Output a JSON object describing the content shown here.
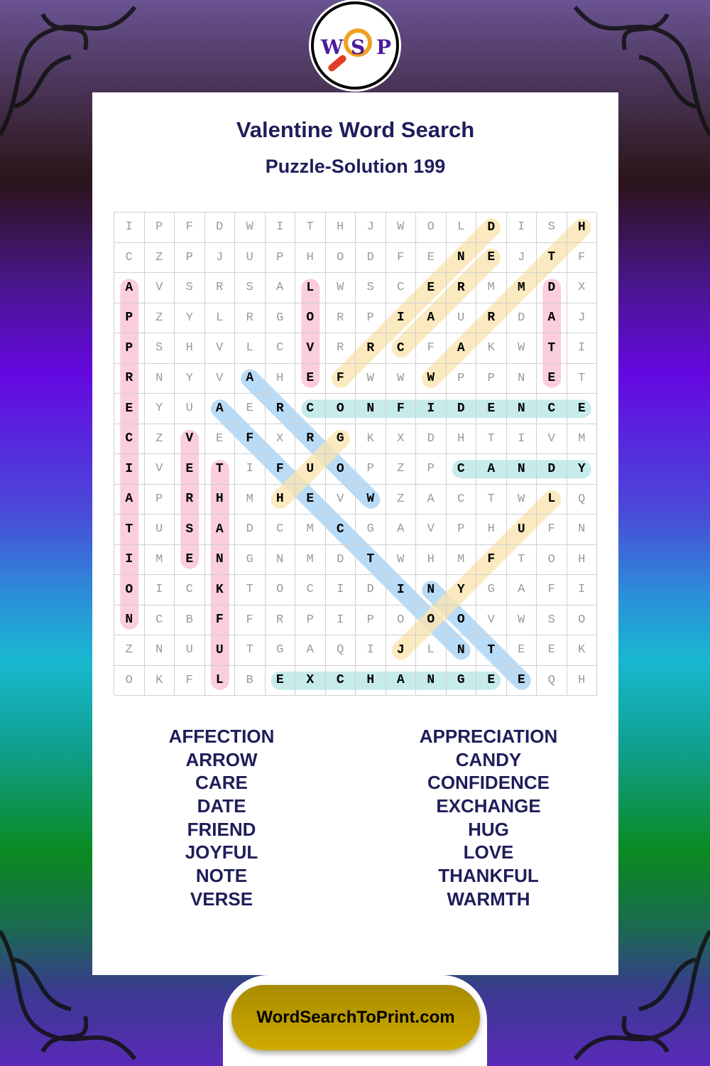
{
  "logo": {
    "letters": [
      "W",
      "S",
      "P"
    ]
  },
  "header": {
    "title": "Valentine Word Search",
    "subtitle": "Puzzle-Solution 199"
  },
  "grid": {
    "rows": [
      "IPFDWITHJWOLDISH",
      "CZPJUPHODFENEJTF",
      "AVSRSALWSCERMMDX",
      "PZYLRGORPIAURDAJ",
      "PSHVLCVRRCFAKWTI",
      "RNYVAHEFWWWPPNET",
      "EYUAERCONFIDENCE",
      "CZVEFXRGKXDHTIVM",
      "IVETIFUOPZPCANDY",
      "APRHMHEVWZACTWLQ",
      "TUSADCMCGAVPHUFN",
      "IMENGNMDTWHMFTOH",
      "OICKTOCIDINYGAFI",
      "NCBFFRPIPOOOVWSO",
      "ZNUUTGAQIJLNTEEK",
      "OKFLBEXCHANGEEQH"
    ]
  },
  "colors": {
    "pink": "#f9c3d1",
    "teal": "#b9e7e6",
    "blue": "#a9d3f3",
    "yellow": "#fbe5b0",
    "text": "#1e1e5a",
    "footer": "#c4a000"
  },
  "solutions": [
    {
      "word": "APPRECIATION",
      "start": [
        2,
        0
      ],
      "end": [
        13,
        0
      ],
      "color": "pink"
    },
    {
      "word": "LOVE",
      "start": [
        2,
        6
      ],
      "end": [
        5,
        6
      ],
      "color": "pink"
    },
    {
      "word": "DATE",
      "start": [
        2,
        14
      ],
      "end": [
        5,
        14
      ],
      "color": "pink"
    },
    {
      "word": "VERSE",
      "start": [
        7,
        2
      ],
      "end": [
        11,
        2
      ],
      "color": "pink"
    },
    {
      "word": "THANKFUL",
      "start": [
        8,
        3
      ],
      "end": [
        15,
        3
      ],
      "color": "pink"
    },
    {
      "word": "CONFIDENCE",
      "start": [
        6,
        6
      ],
      "end": [
        6,
        15
      ],
      "color": "teal"
    },
    {
      "word": "CANDY",
      "start": [
        8,
        11
      ],
      "end": [
        8,
        15
      ],
      "color": "teal"
    },
    {
      "word": "EXCHANGE",
      "start": [
        15,
        5
      ],
      "end": [
        15,
        12
      ],
      "color": "teal"
    },
    {
      "word": "ARROW",
      "start": [
        5,
        4
      ],
      "end": [
        9,
        8
      ],
      "color": "blue"
    },
    {
      "word": "AFFECTION",
      "start": [
        6,
        3
      ],
      "end": [
        14,
        11
      ],
      "color": "blue"
    },
    {
      "word": "NOTE",
      "start": [
        12,
        10
      ],
      "end": [
        15,
        13
      ],
      "color": "blue"
    },
    {
      "word": "FRIEND",
      "start": [
        5,
        7
      ],
      "end": [
        0,
        12
      ],
      "color": "yellow"
    },
    {
      "word": "CARE",
      "start": [
        4,
        9
      ],
      "end": [
        1,
        12
      ],
      "color": "yellow"
    },
    {
      "word": "WARMTH",
      "start": [
        5,
        10
      ],
      "end": [
        0,
        15
      ],
      "color": "yellow"
    },
    {
      "word": "HUG",
      "start": [
        9,
        5
      ],
      "end": [
        7,
        7
      ],
      "color": "yellow"
    },
    {
      "word": "JOYFUL",
      "start": [
        14,
        9
      ],
      "end": [
        9,
        14
      ],
      "color": "yellow"
    }
  ],
  "word_list": {
    "left": [
      "AFFECTION",
      "ARROW",
      "CARE",
      "DATE",
      "FRIEND",
      "JOYFUL",
      "NOTE",
      "VERSE"
    ],
    "right": [
      "APPRECIATION",
      "CANDY",
      "CONFIDENCE",
      "EXCHANGE",
      "HUG",
      "LOVE",
      "THANKFUL",
      "WARMTH"
    ]
  },
  "footer": {
    "site": "WordSearchToPrint.com"
  }
}
